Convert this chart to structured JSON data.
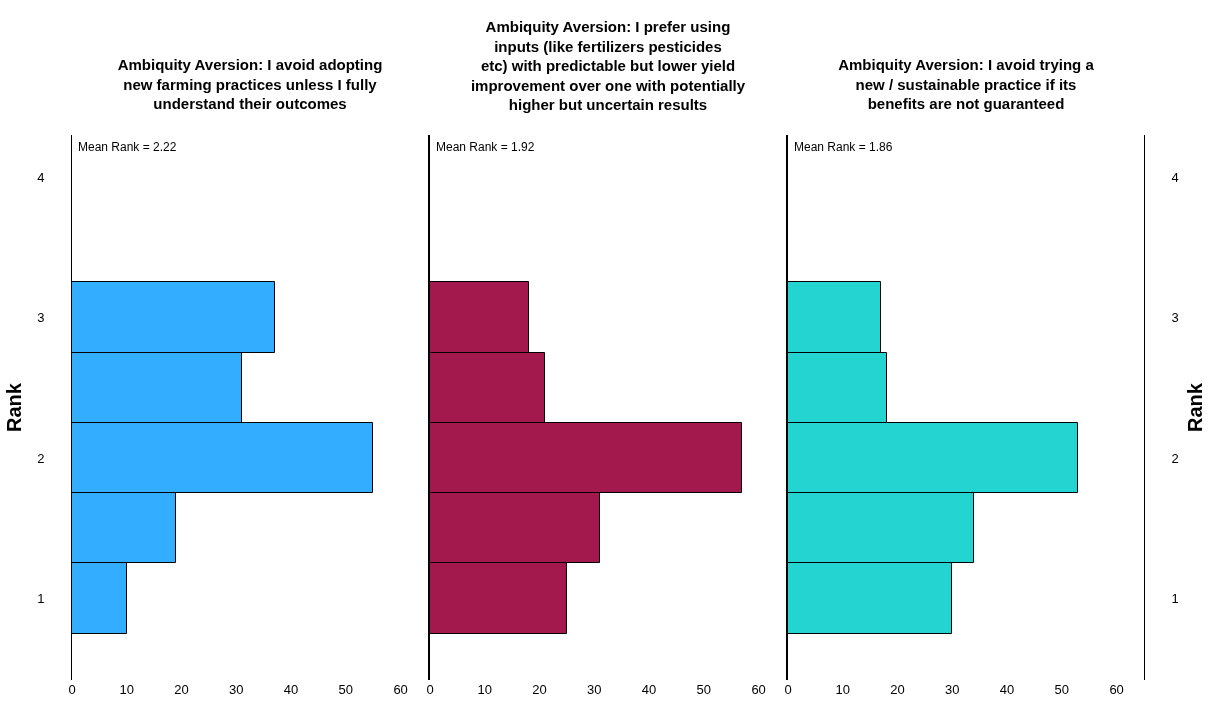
{
  "chart_data": [
    {
      "type": "histogram",
      "orientation": "horizontal",
      "title": "Ambiquity Aversion: I avoid adopting new farming practices unless I fully understand their outcomes",
      "ylabel": "Rank",
      "bins": [
        0.75,
        1.25,
        1.75,
        2.25,
        2.75,
        3.25
      ],
      "values": [
        10,
        19,
        55,
        31,
        37
      ],
      "color": "#33adff",
      "xlim": [
        0,
        65
      ],
      "xticks": [
        0,
        10,
        20,
        30,
        40,
        50,
        60
      ],
      "ylim": [
        0.42,
        4.3
      ],
      "yticks": [
        1,
        2,
        3,
        4
      ],
      "annotations": [
        "Mean Rank = 2.22"
      ]
    },
    {
      "type": "histogram",
      "orientation": "horizontal",
      "title": "Ambiquity Aversion: I prefer using inputs (like fertilizers pesticides etc) with predictable but lower yield improvement over one with potentially higher but uncertain results",
      "bins": [
        0.75,
        1.25,
        1.75,
        2.25,
        2.75,
        3.25
      ],
      "values": [
        25,
        31,
        57,
        21,
        18
      ],
      "color": "#a3194d",
      "xlim": [
        0,
        65
      ],
      "xticks": [
        0,
        10,
        20,
        30,
        40,
        50,
        60
      ],
      "ylim": [
        0.42,
        4.3
      ],
      "yticks": [
        1,
        2,
        3,
        4
      ],
      "tick_labels": "x",
      "annotations": [
        "Mean Rank = 1.92"
      ]
    },
    {
      "type": "histogram",
      "orientation": "horizontal",
      "title": "Ambiquity Aversion: I avoid trying a new / sustainable practice if its benefits are not guaranteed",
      "ylabel": "Rank",
      "bins": [
        0.75,
        1.25,
        1.75,
        2.25,
        2.75,
        3.25
      ],
      "values": [
        30,
        34,
        53,
        18,
        17
      ],
      "color": "#24d4d0",
      "xlim": [
        0,
        65
      ],
      "xticks": [
        0,
        10,
        20,
        30,
        40,
        50,
        60
      ],
      "ylim": [
        0.42,
        4.3
      ],
      "yticks": [
        1,
        2,
        3,
        4
      ],
      "annotations": [
        "Mean Rank = 1.86"
      ]
    }
  ]
}
